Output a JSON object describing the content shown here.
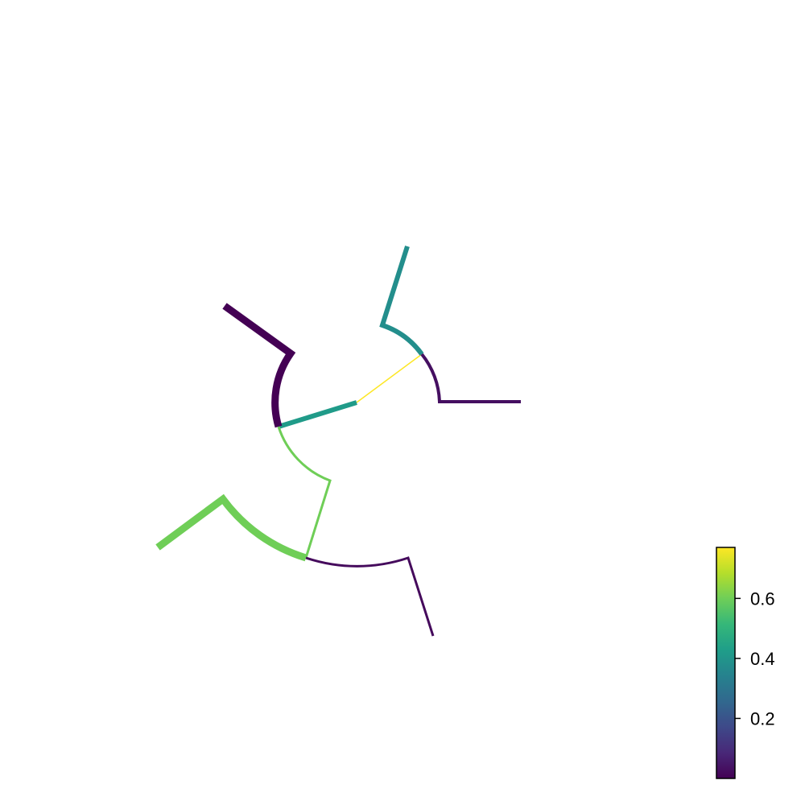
{
  "chart_data": {
    "type": "circular-tree",
    "title": "",
    "colormap": "viridis",
    "colorbar": {
      "placement": "bottom-right",
      "range": [
        0.0,
        0.77
      ],
      "ticks": [
        {
          "value": 0.2,
          "label": "0.2"
        },
        {
          "value": 0.4,
          "label": "0.4"
        },
        {
          "value": 0.6,
          "label": "0.6"
        }
      ]
    },
    "branches": [
      {
        "id": "root-branch",
        "value": 0.77
      },
      {
        "id": "upper-left-clade-stem",
        "value": 0.42
      },
      {
        "id": "upper-left-tip-branch",
        "value": 0.0
      },
      {
        "id": "lower-clade-stem",
        "value": 0.6
      },
      {
        "id": "lower-left-tip-branch",
        "value": 0.6
      },
      {
        "id": "lower-right-tip-branch",
        "value": 0.02
      },
      {
        "id": "right-tip-branch",
        "value": 0.03
      },
      {
        "id": "top-tip-branch",
        "value": 0.38
      }
    ],
    "colors": {
      "viridis_stops": [
        "#440154",
        "#482878",
        "#3e4989",
        "#31688e",
        "#26828e",
        "#1f9e89",
        "#35b779",
        "#6ece58",
        "#b5de2b",
        "#fde725"
      ]
    }
  }
}
